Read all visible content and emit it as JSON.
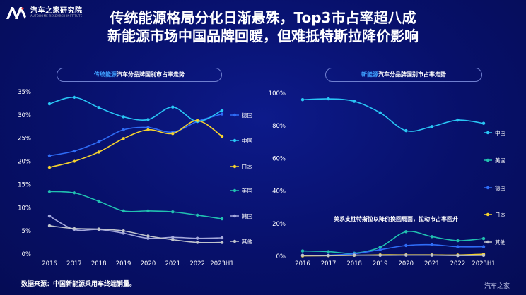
{
  "header": {
    "logo_cn": "汽车之家研究院",
    "logo_en": "AUTOHOME RESEARCH INSTITUTE",
    "title_line1": "传统能源格局分化日渐悬殊，Top3市占率超八成",
    "title_line2": "新能源市场中国品牌回暖，但难抵特斯拉降价影响"
  },
  "footer": {
    "source": "数据来源：中国新能源乘用车终端销量。",
    "watermark": "汽车之家"
  },
  "colors": {
    "德国": "#2f6cf6",
    "中国": "#29c6f5",
    "日本": "#f5d22e",
    "美国": "#21c0b0",
    "韩国": "#a4a8dc",
    "其他": "#c0c4cc",
    "axis_text": "#ffffff"
  },
  "chart_data": [
    {
      "type": "line",
      "title_highlight": "传统能源",
      "title_rest": "汽车分品牌国别市占率走势",
      "x": [
        "2016",
        "2017",
        "2018",
        "2019",
        "2020",
        "2021",
        "2022",
        "2023H1"
      ],
      "y_ticks": [
        "0%",
        "5%",
        "10%",
        "15%",
        "20%",
        "25%",
        "30%",
        "35%"
      ],
      "ylim": [
        0,
        35
      ],
      "legend_position": "right",
      "series": [
        {
          "name": "德国",
          "values": [
            21.2,
            22.2,
            24.2,
            26.8,
            27.3,
            26.3,
            28.6,
            30.2
          ]
        },
        {
          "name": "中国",
          "values": [
            32.4,
            33.8,
            31.6,
            29.6,
            29.0,
            31.7,
            28.6,
            31.0
          ]
        },
        {
          "name": "日本",
          "values": [
            18.7,
            20.0,
            22.0,
            24.9,
            26.8,
            26.0,
            28.8,
            25.4
          ]
        },
        {
          "name": "美国",
          "values": [
            13.5,
            13.2,
            11.4,
            9.3,
            9.3,
            9.1,
            8.4,
            7.6
          ]
        },
        {
          "name": "韩国",
          "values": [
            8.2,
            5.3,
            5.3,
            4.5,
            3.4,
            3.6,
            3.4,
            3.5
          ]
        },
        {
          "name": "其他",
          "values": [
            6.1,
            5.5,
            5.4,
            5.0,
            3.9,
            3.1,
            2.5,
            2.5
          ]
        }
      ]
    },
    {
      "type": "line",
      "title_highlight": "新能源",
      "title_rest": "汽车分品牌国别市占率走势",
      "x": [
        "2016",
        "2017",
        "2018",
        "2019",
        "2020",
        "2021",
        "2022",
        "2023H1"
      ],
      "y_ticks": [
        "0%",
        "20%",
        "40%",
        "60%",
        "80%",
        "100%"
      ],
      "ylim": [
        0,
        100
      ],
      "legend_position": "right",
      "annotation": "美系支柱特斯拉以降价换回局面，拉动市占率回升",
      "series": [
        {
          "name": "中国",
          "values": [
            96,
            96.5,
            95,
            88,
            77,
            79.5,
            83.5,
            81.5
          ]
        },
        {
          "name": "美国",
          "values": [
            3.2,
            2.8,
            1.8,
            5.5,
            15,
            12,
            9.5,
            10.8
          ]
        },
        {
          "name": "德国",
          "values": [
            0.5,
            0.6,
            1.5,
            4,
            6.5,
            7,
            5.8,
            5.8
          ]
        },
        {
          "name": "日本",
          "values": [
            0.2,
            0.3,
            0.5,
            0.8,
            0.8,
            0.8,
            0.7,
            1.2
          ]
        },
        {
          "name": "其他",
          "values": [
            0.5,
            0.4,
            0.6,
            0.5,
            0.6,
            0.6,
            0.4,
            0.5
          ]
        }
      ]
    }
  ]
}
